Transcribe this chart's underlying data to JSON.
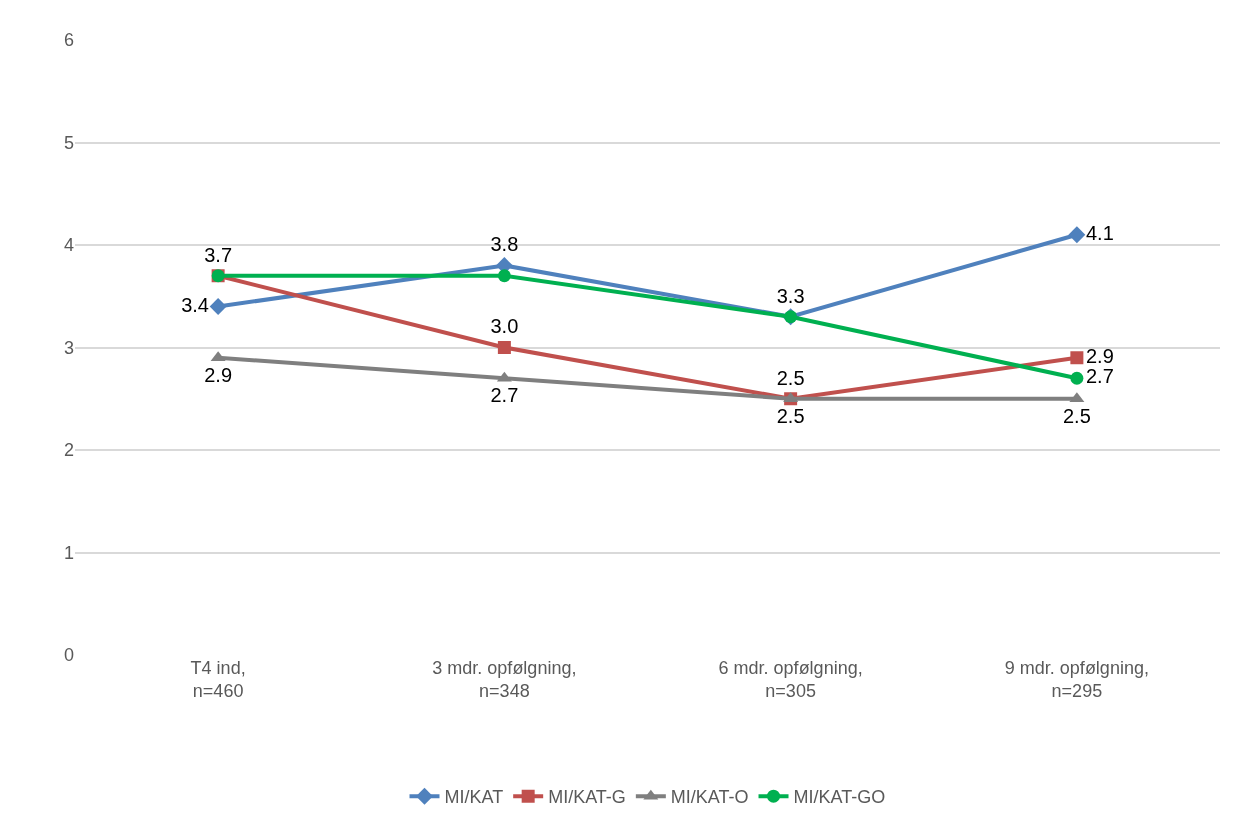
{
  "chart_data": {
    "type": "line",
    "categories": [
      "T4 ind,\nn=460",
      "3 mdr. opfølgning,\nn=348",
      "6 mdr. opfølgning,\nn=305",
      "9 mdr. opfølgning,\nn=295"
    ],
    "series": [
      {
        "name": "MI/KAT",
        "color": "#4f81bd",
        "marker": "diamond",
        "values": [
          3.4,
          3.8,
          3.3,
          4.1
        ],
        "value_labels": [
          "3.4",
          "3.8",
          "3.3",
          "4.1"
        ]
      },
      {
        "name": "MI/KAT-G",
        "color": "#c0504d",
        "marker": "square",
        "values": [
          3.7,
          3.0,
          2.5,
          2.9
        ],
        "value_labels": [
          "3.7",
          "3.0",
          "2.5",
          "2.9"
        ]
      },
      {
        "name": "MI/KAT-O",
        "color": "#7f7f7f",
        "marker": "triangle",
        "values": [
          2.9,
          2.7,
          2.5,
          2.5
        ],
        "value_labels": [
          "2.9",
          "2.7",
          "2.5",
          "2.5"
        ]
      },
      {
        "name": "MI/KAT-GO",
        "color": "#00b050",
        "marker": "circle",
        "values": [
          3.7,
          3.7,
          3.3,
          2.7
        ],
        "value_labels": [
          null,
          null,
          null,
          "2.7"
        ]
      }
    ],
    "ylim": [
      0,
      6
    ],
    "yticks": [
      0,
      1,
      2,
      3,
      4,
      5,
      6
    ],
    "grid": "y",
    "legend": "bottom",
    "line_style": "solid"
  }
}
